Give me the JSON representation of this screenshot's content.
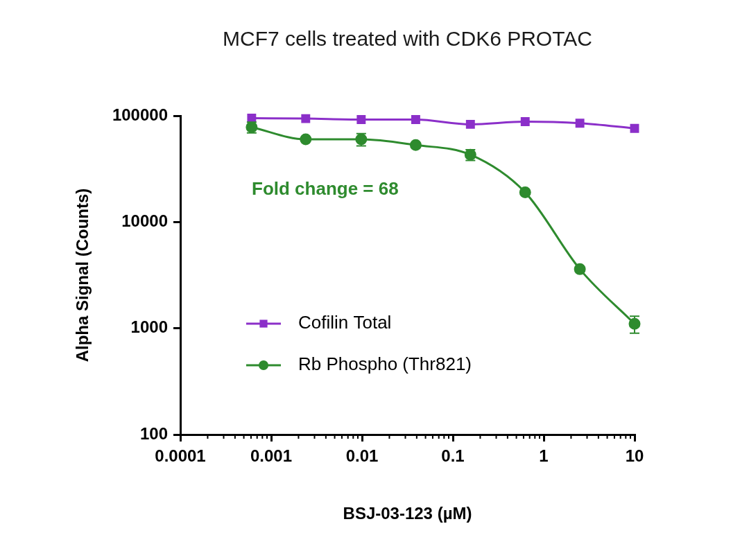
{
  "chart_data": {
    "type": "line",
    "title": "MCF7 cells treated with CDK6 PROTAC",
    "x_label": "BSJ-03-123 (µM)",
    "y_label": "Alpha Signal (Counts)",
    "x": [
      0.00061,
      0.0024,
      0.0098,
      0.039,
      0.156,
      0.625,
      2.5,
      10
    ],
    "series": [
      {
        "name": "Cofilin Total",
        "color": "#8b2fc9",
        "marker": "square",
        "line_style": "solid",
        "values": [
          95000,
          94000,
          92000,
          92000,
          83000,
          88000,
          85000,
          76000
        ]
      },
      {
        "name": "Rb Phospho (Thr821)",
        "color": "#2e8b2e",
        "marker": "circle",
        "line_style": "solid",
        "values": [
          78000,
          60000,
          60000,
          53000,
          43000,
          19000,
          3600,
          1100
        ],
        "errors": [
          9000,
          null,
          8000,
          null,
          5000,
          null,
          null,
          200
        ]
      }
    ],
    "annotations": [
      {
        "text": "Fold change = 68",
        "color": "#2e8b2e"
      }
    ],
    "log": true,
    "xlim": [
      0.0001,
      10
    ],
    "xticks": [
      0.0001,
      0.001,
      0.01,
      0.1,
      1,
      10
    ],
    "ylim": [
      100,
      100000
    ],
    "yticks": [
      100,
      1000,
      10000,
      100000
    ],
    "grid": false,
    "legend": "lower left"
  }
}
